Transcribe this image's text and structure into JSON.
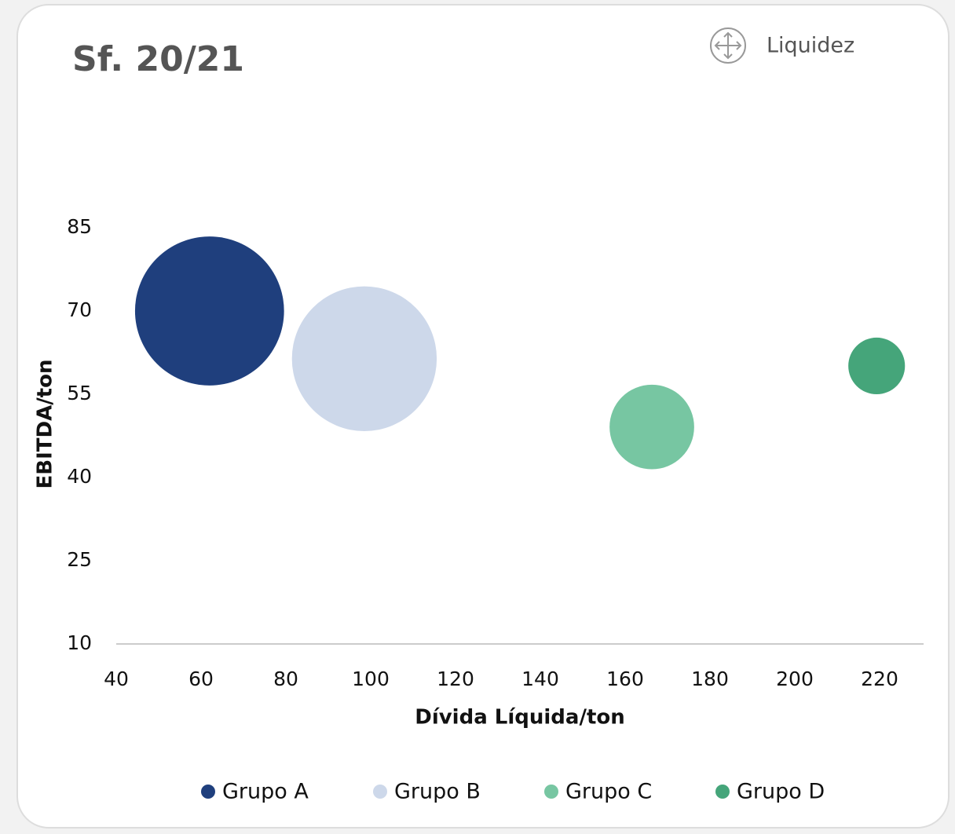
{
  "chart_data": {
    "type": "bubble",
    "title": "Sf. 20/21",
    "link_label": "Liquidez",
    "x_label": "Dívida Líquida/ton",
    "y_label": "EBITDA/ton",
    "xlim": [
      40,
      230
    ],
    "xticks": [
      40,
      60,
      80,
      100,
      120,
      140,
      160,
      180,
      200,
      220
    ],
    "ylim": [
      10,
      85
    ],
    "yticks": [
      10,
      25,
      40,
      55,
      70,
      85
    ],
    "grid": false,
    "legend": "bottom",
    "series": [
      {
        "name": "Grupo A",
        "color": "#1f3f7d",
        "x": [
          62
        ],
        "values": [
          70
        ],
        "sizes": [
          90
        ]
      },
      {
        "name": "Grupo B",
        "color": "#cdd8ea",
        "x": [
          98.5
        ],
        "values": [
          61.4
        ],
        "sizes": [
          85
        ]
      },
      {
        "name": "Grupo C",
        "color": "#77c6a2",
        "x": [
          166.3
        ],
        "values": [
          49.1
        ],
        "sizes": [
          29
        ]
      },
      {
        "name": "Grupo D",
        "color": "#45a57a",
        "x": [
          219.3
        ],
        "values": [
          60.1
        ],
        "sizes": [
          13
        ]
      }
    ]
  }
}
